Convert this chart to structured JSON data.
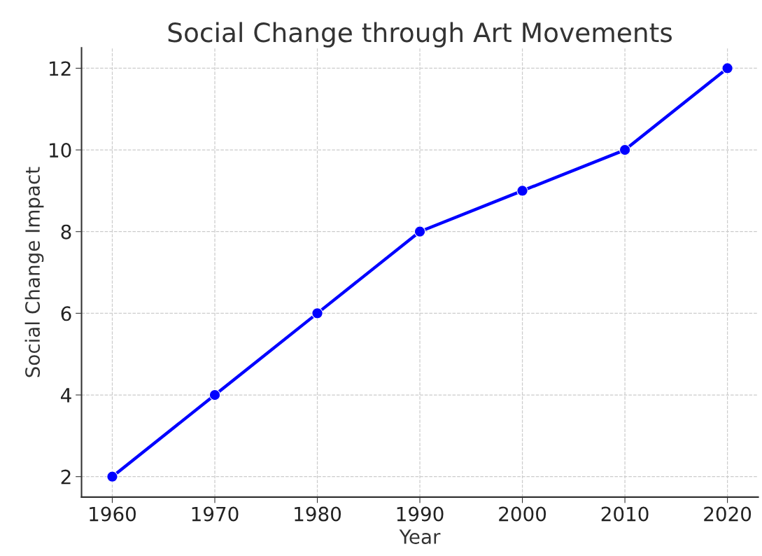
{
  "chart_data": {
    "type": "line",
    "title": "Social Change through Art Movements",
    "xlabel": "Year",
    "ylabel": "Social Change Impact",
    "x": [
      1960,
      1970,
      1980,
      1990,
      2000,
      2010,
      2020
    ],
    "series": [
      {
        "color": "#0000ff",
        "values": [
          2,
          4,
          6,
          8,
          9,
          10,
          12
        ]
      }
    ],
    "xlim": [
      1957,
      2023
    ],
    "xticks": [
      1960,
      1970,
      1980,
      1990,
      2000,
      2010,
      2020
    ],
    "ylim": [
      1.5,
      12.5
    ],
    "yticks": [
      2,
      4,
      6,
      8,
      10,
      12
    ],
    "grid": true,
    "marker": "circle",
    "line_style": "solid"
  }
}
